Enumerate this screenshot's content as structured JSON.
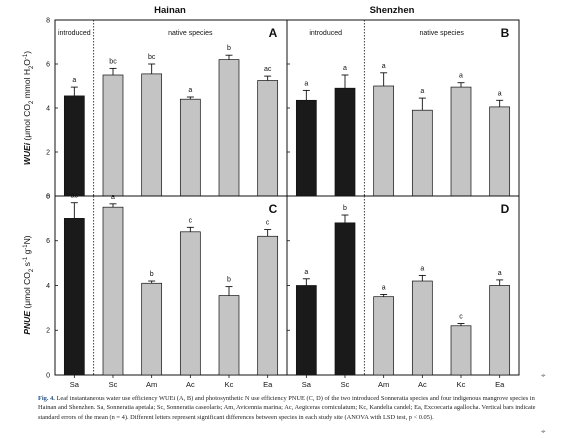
{
  "figure": {
    "columns": [
      "Hainan",
      "Shenzhen"
    ],
    "species": [
      "Sa",
      "Sc",
      "Am",
      "Ac",
      "Kc",
      "Ea"
    ],
    "group_labels": {
      "introduced": "introduced",
      "native": "native species"
    },
    "colors": {
      "introduced": "#1a1a1a",
      "native": "#c4c4c4",
      "axis": "#111111"
    },
    "corner_mark": "⌖"
  },
  "chart_data": [
    {
      "type": "bar",
      "panel": "A",
      "site": "Hainan",
      "categories": [
        "Sa",
        "Sc",
        "Am",
        "Ac",
        "Kc",
        "Ea"
      ],
      "values": [
        4.55,
        5.5,
        5.55,
        4.4,
        6.2,
        5.25
      ],
      "errors": [
        0.4,
        0.3,
        0.45,
        0.1,
        0.2,
        0.2
      ],
      "letters": [
        "a",
        "bc",
        "bc",
        "a",
        "b",
        "ac"
      ],
      "groups": [
        "introduced",
        "native",
        "native",
        "native",
        "native",
        "native"
      ],
      "ylabel": "WUEi (μmol CO2 mmol H2O-1)",
      "ylim": [
        0,
        8
      ],
      "yticks": [
        0,
        2,
        4,
        6,
        8
      ]
    },
    {
      "type": "bar",
      "panel": "B",
      "site": "Shenzhen",
      "categories": [
        "Sa",
        "Sc",
        "Am",
        "Ac",
        "Kc",
        "Ea"
      ],
      "values": [
        4.35,
        4.9,
        5.0,
        3.9,
        4.95,
        4.05
      ],
      "errors": [
        0.45,
        0.6,
        0.6,
        0.55,
        0.2,
        0.3
      ],
      "letters": [
        "a",
        "a",
        "a",
        "a",
        "a",
        "a"
      ],
      "groups": [
        "introduced",
        "introduced",
        "native",
        "native",
        "native",
        "native"
      ],
      "ylim": [
        0,
        8
      ],
      "yticks": [
        0,
        2,
        4,
        6,
        8
      ]
    },
    {
      "type": "bar",
      "panel": "C",
      "site": "Hainan",
      "categories": [
        "Sa",
        "Sc",
        "Am",
        "Ac",
        "Kc",
        "Ea"
      ],
      "values": [
        7.0,
        7.5,
        4.1,
        6.4,
        3.55,
        6.2
      ],
      "errors": [
        0.7,
        0.15,
        0.1,
        0.2,
        0.4,
        0.3
      ],
      "letters": [
        "ac",
        "a",
        "b",
        "c",
        "b",
        "c"
      ],
      "groups": [
        "introduced",
        "native",
        "native",
        "native",
        "native",
        "native"
      ],
      "ylabel": "PNUE (μmol CO2 s-1 g-1N)",
      "ylim": [
        0,
        8
      ],
      "yticks": [
        0,
        2,
        4,
        6,
        8
      ]
    },
    {
      "type": "bar",
      "panel": "D",
      "site": "Shenzhen",
      "categories": [
        "Sa",
        "Sc",
        "Am",
        "Ac",
        "Kc",
        "Ea"
      ],
      "values": [
        4.0,
        6.8,
        3.5,
        4.2,
        2.2,
        4.0
      ],
      "errors": [
        0.3,
        0.35,
        0.1,
        0.25,
        0.1,
        0.25
      ],
      "letters": [
        "a",
        "b",
        "a",
        "a",
        "c",
        "a"
      ],
      "groups": [
        "introduced",
        "introduced",
        "native",
        "native",
        "native",
        "native"
      ],
      "ylim": [
        0,
        8
      ],
      "yticks": [
        0,
        2,
        4,
        6,
        8
      ]
    }
  ],
  "caption": {
    "label": "Fig. 4.",
    "text": "Leaf instantaneous water use efficiency WUEi (A, B) and photosynthetic N use efficiency PNUE (C, D) of the two introduced Sonneratia species and four indigenous mangrove species in Hainan and Shenzhen. Sa, Sonneratia apetala; Sc, Sonneratia caseolaris; Am, Avicennia marina; Ac, Aegiceras corniculatum; Kc, Kandelia candel; Ea, Excoecaria agallocha. Vertical bars indicate standard errors of the mean (n = 4). Different letters represent significant differences between species in each study site (ANOVA with LSD test, p < 0.05)."
  }
}
